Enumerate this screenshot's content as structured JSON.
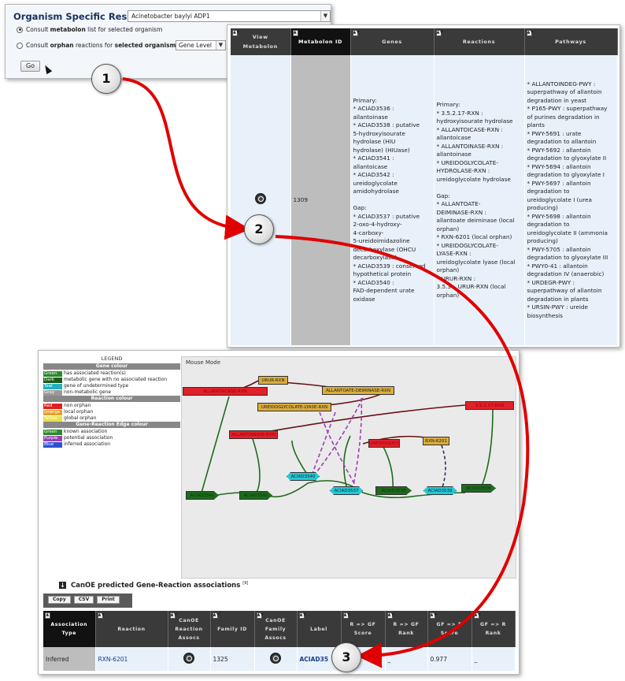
{
  "form": {
    "title": "Organism Specific Results:",
    "organism_value": "Acinetobacter baylyi ADP1",
    "option1_prefix": "Consult ",
    "option1_bold": "metabolon",
    "option1_suffix": " list for selected organism",
    "option2_prefix": "Consult ",
    "option2_bold1": "orphan",
    "option2_mid": " reactions for ",
    "option2_bold2": "selected organism",
    "level_value": "Gene Level",
    "go_label": "Go"
  },
  "metabolon_table": {
    "headers": {
      "view": "View\nMetabolon",
      "metabolon_id": "Metabolon ID",
      "genes": "Genes",
      "reactions": "Reactions",
      "pathways": "Pathways"
    },
    "row": {
      "metabolon_id": "1309",
      "genes": "Primary:\n* ACIAD3536 :\nallantoinase\n* ACIAD3538 : putative\n5-hydroxyisourate\nhydrolase (HIU\nhydrolase) (HIUase)\n* ACIAD3541 :\nallantoicase\n* ACIAD3542 :\nureidoglycolate\namidohydrolase\n\nGap:\n* ACIAD3537 : putative\n2-oxo-4-hydroxy-\n4-carboxy-\n5-ureidoimidazoline\ndecarboxylase (OHCU\ndecarboxylase)\n* ACIAD3539 : conserved\nhypothetical protein\n* ACIAD3540 :\nFAD-dependent urate\noxidase",
      "reactions": "Primary:\n* 3.5.2.17-RXN :\nhydroxyisourate hydrolase\n* ALLANTOICASE-RXN :\nallantoicase\n* ALLANTOINASE-RXN :\nallantoinase\n* UREIDOGLYCOLATE-\nHYDROLASE-RXN :\nureidoglycolate hydrolase\n\nGap:\n* ALLANTOATE-\nDEIMINASE-RXN :\nallantoate deiminase (local\norphan)\n* RXN-6201 (local orphan)\n* UREIDOGLYCOLATE-\nLYASE-RXN :\nureidoglycolate lyase (local\norphan)\n* URUR-RXN :\n3.5.3.-_URUR-RXN (local\norphan)",
      "pathways": "* ALLANTOINDEG-PWY :\nsuperpathway of allantoin\ndegradation in yeast\n* P165-PWY : superpathway\nof purines degradation in\nplants\n* PWY-5691 : urate\ndegradation to allantoin\n* PWY-5692 : allantoin\ndegradation to glyoxylate II\n* PWY-5694 : allantoin\ndegradation to glyoxylate I\n* PWY-5697 : allantoin\ndegradation to\nureidoglycolate I (urea\nproducing)\n* PWY-5698 : allantoin\ndegradation to\nureidoglycolate II (ammonia\nproducing)\n* PWY-5705 : allantoin\ndegradation to glyoxylate III\n* PWY0-41 : allantoin\ndegradation IV (anaerobic)\n* URDEGR-PWY :\nsuperpathway of allantoin\ndegradation in plants\n* URSIN-PWY : ureide\nbiosynthesis"
    }
  },
  "legend": {
    "title": "LEGEND",
    "gene_colour_title": "Gene colour",
    "gene_items": [
      {
        "swatch": "Green",
        "color": "#2a8a2a",
        "text": "has associated reaction(s)"
      },
      {
        "swatch": "Dark Green",
        "color": "#1e5a1e",
        "text": "metabolic gene with no associated reaction"
      },
      {
        "swatch": "Teal",
        "color": "#22b0c0",
        "text": "gene of undetermined type"
      },
      {
        "swatch": "Gray",
        "color": "#999999",
        "text": "non-metabolic gene"
      }
    ],
    "reaction_colour_title": "Reaction colour",
    "reaction_items": [
      {
        "swatch": "Red",
        "color": "#e02020",
        "text": "non orphan"
      },
      {
        "swatch": "Orange",
        "color": "#e0a030",
        "text": "local orphan"
      },
      {
        "swatch": "Yellow",
        "color": "#e8e040",
        "text": "global orphan"
      }
    ],
    "edge_colour_title": "Gene-Reaction Edge colour",
    "edge_items": [
      {
        "swatch": "Green",
        "color": "#2a8a2a",
        "text": "known association"
      },
      {
        "swatch": "Purple",
        "color": "#9a40b0",
        "text": "potential association"
      },
      {
        "swatch": "Blue",
        "color": "#3050d0",
        "text": "inferred association"
      }
    ]
  },
  "network": {
    "mode_label": "Mouse Mode",
    "nodes": {
      "urur": "URUR-RXN",
      "allantoicase": "ALLANTOICASE-RXN",
      "hydroxyisourate": "3.5.2.17-RXN",
      "allantoate": "ALLANTOATE-DEIMINASE-RXN",
      "ureido_lyase": "UREIDOGLYCOLATE-LYASE-RXN",
      "allantoinase": "ALLANTOINASE-RXN",
      "ureido_hydrolase": "UREIDOGLYCOLATE-HYDROLASE-RXN",
      "rxn6201": "RXN-6201",
      "g3541": "ACIAD3541",
      "g3542": "ACIAD3542",
      "g3540": "ACIAD3540",
      "g3537": "ACIAD3537",
      "g3538": "ACIAD3538",
      "g3539": "ACIAD3539",
      "g3536": "ACIAD3536"
    }
  },
  "associations": {
    "title": "CanOE predicted Gene-Reaction associations",
    "footnote": "[9]",
    "buttons": [
      "Copy",
      "CSV",
      "Print"
    ],
    "headers": [
      "Association\nType",
      "Reaction",
      "CanOE\nReaction\nAssocs",
      "Family ID",
      "CanOE\nFamily\nAssocs",
      "Label",
      "R => GF\nScore",
      "R => GF\nRank",
      "GF => R\nScore",
      "GF => R\nRank"
    ],
    "row": {
      "type": "Inferred",
      "reaction": "RXN-6201",
      "family_id": "1325",
      "label": "ACIAD35",
      "rgf_score": "",
      "rgf_rank": "_",
      "gfr_score": "0.977",
      "gfr_rank": "_"
    }
  },
  "callouts": [
    "1",
    "2",
    "3"
  ]
}
